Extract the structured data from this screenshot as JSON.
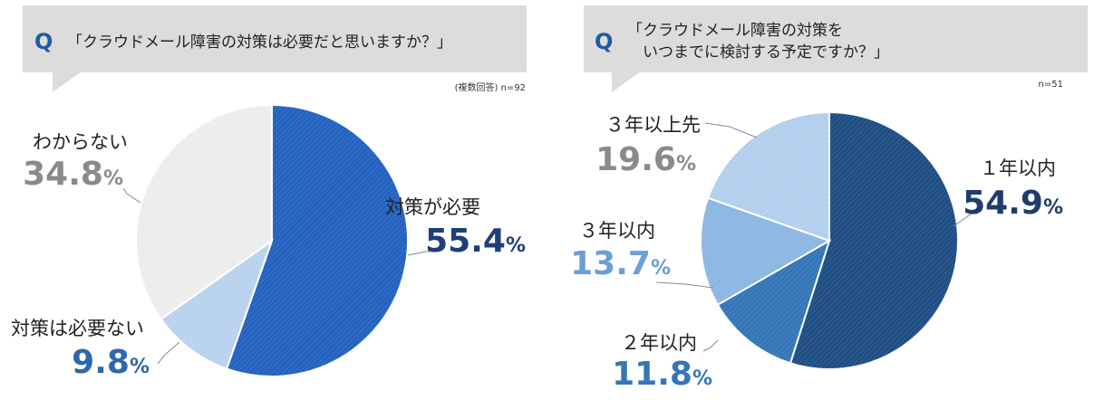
{
  "chart_data": [
    {
      "type": "pie",
      "question_mark": "Q",
      "question_lines": [
        "「クラウドメール障害の対策は必要だと思いますか？」"
      ],
      "note": "(複数回答) n=92",
      "slices": [
        {
          "label": "対策が必要",
          "value": 55.4,
          "value_text": "55.4",
          "pct": "%",
          "color": "#2462c0",
          "label_color": "#1f3f7a",
          "name_color": "#222222"
        },
        {
          "label": "対策は必要ない",
          "value": 9.8,
          "value_text": "9.8",
          "pct": "%",
          "color": "#b9d2ee",
          "label_color": "#2e67ad",
          "name_color": "#222222"
        },
        {
          "label": "わからない",
          "value": 34.8,
          "value_text": "34.8",
          "pct": "%",
          "color": "#ededed",
          "label_color": "#8a8a8a",
          "name_color": "#222222"
        }
      ]
    },
    {
      "type": "pie",
      "question_mark": "Q",
      "question_lines": [
        "「クラウドメール障害の対策を",
        "　いつまでに検討する予定ですか？」"
      ],
      "note": "n=51",
      "slices": [
        {
          "label": "１年以内",
          "value": 54.9,
          "value_text": "54.9",
          "pct": "%",
          "color": "#1f4e85",
          "label_color": "#1e3d6e",
          "name_color": "#222222"
        },
        {
          "label": "２年以内",
          "value": 11.8,
          "value_text": "11.8",
          "pct": "%",
          "color": "#3476b8",
          "label_color": "#3476b8",
          "name_color": "#222222"
        },
        {
          "label": "３年以内",
          "value": 13.7,
          "value_text": "13.7",
          "pct": "%",
          "color": "#8db6e3",
          "label_color": "#6b9fd6",
          "name_color": "#222222"
        },
        {
          "label": "３年以上先",
          "value": 19.6,
          "value_text": "19.6",
          "pct": "%",
          "color": "#b3cfee",
          "label_color": "#8a8a8a",
          "name_color": "#222222"
        }
      ]
    }
  ]
}
